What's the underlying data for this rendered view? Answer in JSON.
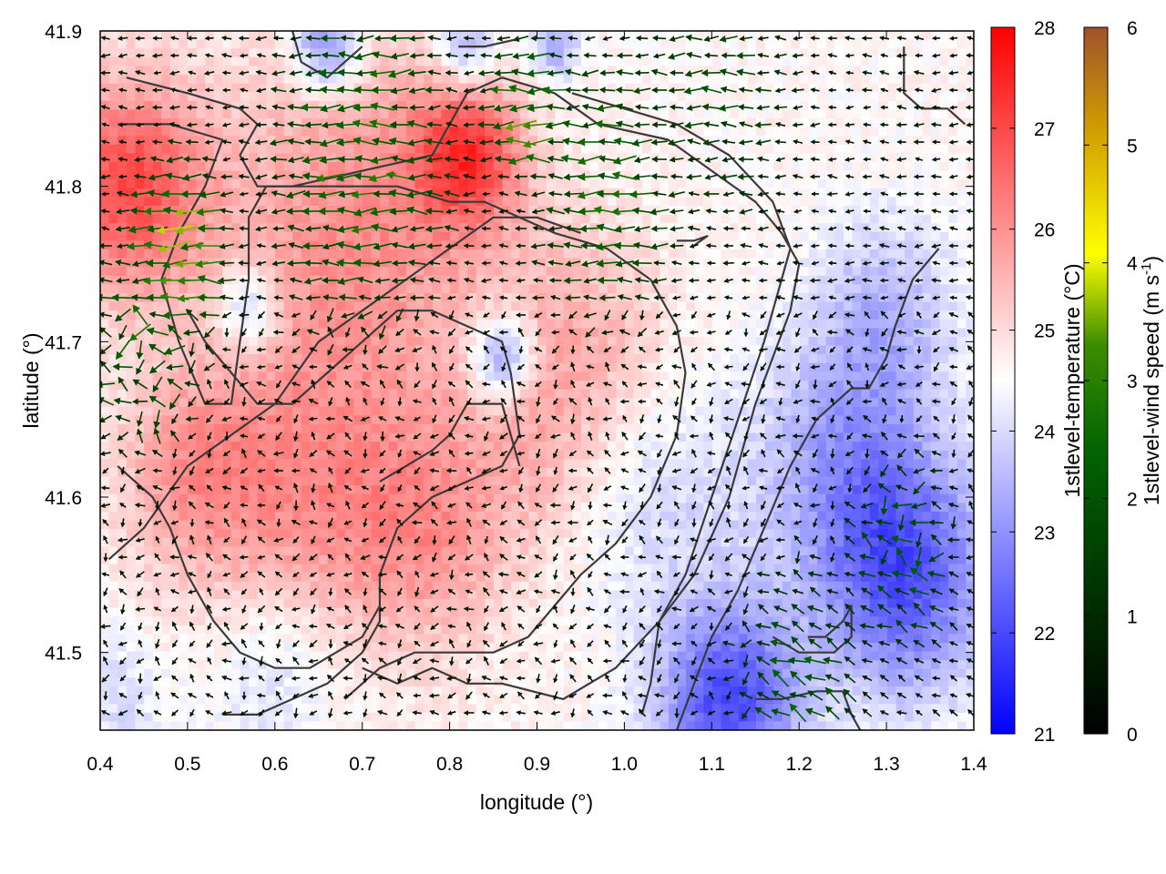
{
  "chart_data": {
    "type": "heatmap",
    "title": "",
    "xlabel": "longitude (°)",
    "ylabel": "latitude (°)",
    "xlim": [
      0.4,
      1.4
    ],
    "ylim": [
      41.45,
      41.9
    ],
    "xticks": [
      "0.4",
      "0.5",
      "0.6",
      "0.7",
      "0.8",
      "0.9",
      "1.0",
      "1.1",
      "1.2",
      "1.3",
      "1.4"
    ],
    "yticks": [
      "41.5",
      "41.6",
      "41.7",
      "41.8",
      "41.9"
    ],
    "grid": false,
    "colorbars": [
      {
        "label": "1stlevel-temperature (°C)",
        "range": [
          21,
          28
        ],
        "ticks": [
          "21",
          "22",
          "23",
          "24",
          "25",
          "26",
          "27",
          "28"
        ],
        "colors": [
          "#0000ff",
          "#ffffff",
          "#ff0000"
        ]
      },
      {
        "label_main": "1stlevel-wind speed (m s",
        "label_sup": "-1",
        "label_end": ")",
        "range": [
          0,
          6
        ],
        "ticks": [
          "0",
          "1",
          "2",
          "3",
          "4",
          "5",
          "6"
        ],
        "colors": [
          "#000000",
          "#006400",
          "#2e8b00",
          "#ffff00",
          "#d2a000",
          "#a0522d"
        ]
      }
    ],
    "temperature_field": {
      "base": 24.6,
      "anomalies": [
        {
          "lon": 0.43,
          "lat": 41.8,
          "amp": 2.3,
          "r": 0.09
        },
        {
          "lon": 0.82,
          "lat": 41.82,
          "amp": 2.2,
          "r": 0.06
        },
        {
          "lon": 0.7,
          "lat": 41.78,
          "amp": 1.4,
          "r": 0.16
        },
        {
          "lon": 0.62,
          "lat": 41.6,
          "amp": 1.3,
          "r": 0.14
        },
        {
          "lon": 0.78,
          "lat": 41.58,
          "amp": 1.1,
          "r": 0.1
        },
        {
          "lon": 0.95,
          "lat": 41.7,
          "amp": 0.9,
          "r": 0.1
        },
        {
          "lon": 0.5,
          "lat": 41.62,
          "amp": 0.9,
          "r": 0.08
        },
        {
          "lon": 0.9,
          "lat": 41.63,
          "amp": 0.5,
          "r": 0.08
        },
        {
          "lon": 1.12,
          "lat": 41.47,
          "amp": -2.6,
          "r": 0.08
        },
        {
          "lon": 1.32,
          "lat": 41.55,
          "amp": -2.4,
          "r": 0.1
        },
        {
          "lon": 1.25,
          "lat": 41.63,
          "amp": -1.2,
          "r": 0.1
        },
        {
          "lon": 1.3,
          "lat": 41.72,
          "amp": -1.0,
          "r": 0.08
        },
        {
          "lon": 0.66,
          "lat": 41.89,
          "amp": -2.0,
          "r": 0.04
        },
        {
          "lon": 0.82,
          "lat": 41.89,
          "amp": -1.5,
          "r": 0.035
        },
        {
          "lon": 0.86,
          "lat": 41.69,
          "amp": -2.0,
          "r": 0.035
        },
        {
          "lon": 0.57,
          "lat": 41.72,
          "amp": -1.5,
          "r": 0.035
        },
        {
          "lon": 0.92,
          "lat": 41.89,
          "amp": -1.3,
          "r": 0.03
        },
        {
          "lon": 0.6,
          "lat": 41.49,
          "amp": -0.8,
          "r": 0.08
        },
        {
          "lon": 0.42,
          "lat": 41.47,
          "amp": -0.6,
          "r": 0.06
        },
        {
          "lon": 1.05,
          "lat": 41.6,
          "amp": -0.6,
          "r": 0.1
        }
      ]
    },
    "wind_field": {
      "max_speed": 3.6,
      "strong_zones": [
        {
          "lon": 0.49,
          "lat": 41.76,
          "speed": 3.6,
          "r": 0.06
        },
        {
          "lon": 0.89,
          "lat": 41.85,
          "speed": 3.3,
          "r": 0.05
        },
        {
          "lon": 0.7,
          "lat": 41.82,
          "speed": 2.6,
          "r": 0.12
        },
        {
          "lon": 0.98,
          "lat": 41.8,
          "speed": 2.3,
          "r": 0.1
        },
        {
          "lon": 0.45,
          "lat": 41.7,
          "speed": 2.2,
          "r": 0.08
        },
        {
          "lon": 1.2,
          "lat": 41.48,
          "speed": 2.0,
          "r": 0.09
        },
        {
          "lon": 1.32,
          "lat": 41.56,
          "speed": 1.9,
          "r": 0.08
        },
        {
          "lon": 1.1,
          "lat": 41.86,
          "speed": 1.6,
          "r": 0.12
        }
      ],
      "background_speed": 0.6
    },
    "contours": [
      [
        [
          0.43,
          41.87
        ],
        [
          0.5,
          41.86
        ],
        [
          0.56,
          41.85
        ],
        [
          0.58,
          41.84
        ],
        [
          0.56,
          41.82
        ],
        [
          0.58,
          41.8
        ],
        [
          0.62,
          41.8
        ],
        [
          0.7,
          41.81
        ],
        [
          0.78,
          41.82
        ],
        [
          0.8,
          41.84
        ],
        [
          0.82,
          41.86
        ],
        [
          0.86,
          41.87
        ],
        [
          0.92,
          41.86
        ],
        [
          0.97,
          41.84
        ],
        [
          1.05,
          41.83
        ],
        [
          1.1,
          41.81
        ],
        [
          1.15,
          41.79
        ],
        [
          1.18,
          41.77
        ],
        [
          1.2,
          41.75
        ],
        [
          1.19,
          41.72
        ],
        [
          1.15,
          41.66
        ],
        [
          1.12,
          41.6
        ],
        [
          1.08,
          41.55
        ],
        [
          1.04,
          41.52
        ],
        [
          0.99,
          41.49
        ],
        [
          0.93,
          41.47
        ],
        [
          0.86,
          41.48
        ],
        [
          0.82,
          41.48
        ],
        [
          0.78,
          41.49
        ],
        [
          0.74,
          41.48
        ],
        [
          0.7,
          41.49
        ]
      ],
      [
        [
          0.42,
          41.84
        ],
        [
          0.48,
          41.84
        ],
        [
          0.54,
          41.83
        ],
        [
          0.52,
          41.8
        ],
        [
          0.49,
          41.77
        ],
        [
          0.47,
          41.74
        ],
        [
          0.49,
          41.7
        ],
        [
          0.52,
          41.66
        ],
        [
          0.55,
          41.66
        ],
        [
          0.56,
          41.7
        ],
        [
          0.57,
          41.74
        ],
        [
          0.57,
          41.78
        ],
        [
          0.59,
          41.8
        ],
        [
          0.66,
          41.8
        ],
        [
          0.74,
          41.8
        ],
        [
          0.8,
          41.79
        ],
        [
          0.84,
          41.79
        ],
        [
          0.88,
          41.78
        ],
        [
          0.92,
          41.77
        ],
        [
          0.98,
          41.76
        ],
        [
          1.03,
          41.74
        ],
        [
          1.06,
          41.71
        ],
        [
          1.07,
          41.68
        ],
        [
          1.06,
          41.64
        ],
        [
          1.03,
          41.6
        ],
        [
          0.99,
          41.57
        ],
        [
          0.95,
          41.55
        ],
        [
          0.92,
          41.53
        ],
        [
          0.89,
          41.51
        ],
        [
          0.85,
          41.5
        ],
        [
          0.8,
          41.5
        ],
        [
          0.76,
          41.5
        ],
        [
          0.72,
          41.49
        ],
        [
          0.68,
          41.47
        ]
      ],
      [
        [
          0.41,
          41.56
        ],
        [
          0.45,
          41.58
        ],
        [
          0.5,
          41.62
        ],
        [
          0.55,
          41.64
        ],
        [
          0.6,
          41.66
        ],
        [
          0.65,
          41.7
        ],
        [
          0.7,
          41.72
        ],
        [
          0.75,
          41.74
        ],
        [
          0.8,
          41.76
        ],
        [
          0.85,
          41.78
        ],
        [
          0.9,
          41.78
        ],
        [
          0.95,
          41.77
        ]
      ],
      [
        [
          0.5,
          41.72
        ],
        [
          0.52,
          41.7
        ],
        [
          0.55,
          41.68
        ],
        [
          0.58,
          41.66
        ],
        [
          0.62,
          41.66
        ],
        [
          0.66,
          41.68
        ],
        [
          0.7,
          41.7
        ],
        [
          0.74,
          41.72
        ],
        [
          0.78,
          41.72
        ],
        [
          0.82,
          41.71
        ],
        [
          0.86,
          41.7
        ],
        [
          0.87,
          41.68
        ],
        [
          0.88,
          41.64
        ],
        [
          0.86,
          41.62
        ],
        [
          0.82,
          41.61
        ],
        [
          0.78,
          41.6
        ],
        [
          0.74,
          41.58
        ],
        [
          0.72,
          41.55
        ],
        [
          0.72,
          41.52
        ],
        [
          0.7,
          41.5
        ],
        [
          0.66,
          41.48
        ],
        [
          0.62,
          41.47
        ],
        [
          0.58,
          41.46
        ],
        [
          0.54,
          41.46
        ]
      ],
      [
        [
          0.72,
          41.61
        ],
        [
          0.75,
          41.62
        ],
        [
          0.78,
          41.63
        ],
        [
          0.8,
          41.64
        ],
        [
          0.82,
          41.66
        ],
        [
          0.84,
          41.66
        ],
        [
          0.86,
          41.66
        ],
        [
          0.87,
          41.64
        ],
        [
          0.88,
          41.62
        ]
      ],
      [
        [
          0.42,
          41.62
        ],
        [
          0.46,
          41.6
        ],
        [
          0.48,
          41.58
        ],
        [
          0.5,
          41.55
        ],
        [
          0.53,
          41.52
        ],
        [
          0.56,
          41.5
        ],
        [
          0.6,
          41.49
        ],
        [
          0.64,
          41.49
        ],
        [
          0.67,
          41.5
        ],
        [
          0.7,
          41.51
        ],
        [
          0.72,
          41.53
        ]
      ],
      [
        [
          1.06,
          41.45
        ],
        [
          1.08,
          41.48
        ],
        [
          1.1,
          41.51
        ],
        [
          1.13,
          41.54
        ],
        [
          1.16,
          41.58
        ],
        [
          1.19,
          41.62
        ],
        [
          1.22,
          41.65
        ],
        [
          1.26,
          41.67
        ],
        [
          1.28,
          41.67
        ],
        [
          1.3,
          41.69
        ],
        [
          1.31,
          41.71
        ],
        [
          1.33,
          41.74
        ],
        [
          1.36,
          41.76
        ]
      ],
      [
        [
          1.02,
          41.46
        ],
        [
          1.03,
          41.48
        ],
        [
          1.04,
          41.52
        ],
        [
          1.07,
          41.55
        ],
        [
          1.1,
          41.6
        ],
        [
          1.13,
          41.65
        ],
        [
          1.16,
          41.7
        ],
        [
          1.18,
          41.74
        ],
        [
          1.19,
          41.76
        ],
        [
          1.17,
          41.79
        ],
        [
          1.12,
          41.82
        ],
        [
          1.06,
          41.84
        ],
        [
          1.0,
          41.85
        ],
        [
          0.94,
          41.86
        ]
      ],
      [
        [
          1.21,
          41.51
        ],
        [
          1.23,
          41.51
        ],
        [
          1.25,
          41.52
        ],
        [
          1.26,
          41.53
        ],
        [
          1.26,
          41.51
        ],
        [
          1.24,
          41.5
        ],
        [
          1.2,
          41.5
        ],
        [
          1.17,
          41.51
        ]
      ],
      [
        [
          1.15,
          41.47
        ],
        [
          1.18,
          41.47
        ],
        [
          1.22,
          41.475
        ],
        [
          1.25,
          41.475
        ],
        [
          1.26,
          41.46
        ],
        [
          1.27,
          41.45
        ]
      ],
      [
        [
          1.32,
          41.89
        ],
        [
          1.32,
          41.86
        ],
        [
          1.34,
          41.85
        ],
        [
          1.37,
          41.85
        ],
        [
          1.39,
          41.84
        ]
      ],
      [
        [
          0.62,
          41.9
        ],
        [
          0.63,
          41.88
        ],
        [
          0.66,
          41.87
        ],
        [
          0.68,
          41.88
        ],
        [
          0.7,
          41.89
        ]
      ],
      [
        [
          0.81,
          41.89
        ],
        [
          0.84,
          41.89
        ],
        [
          0.88,
          41.895
        ]
      ],
      [
        [
          1.06,
          41.765
        ],
        [
          1.08,
          41.765
        ],
        [
          1.095,
          41.768
        ],
        [
          1.08,
          41.762
        ]
      ]
    ]
  }
}
